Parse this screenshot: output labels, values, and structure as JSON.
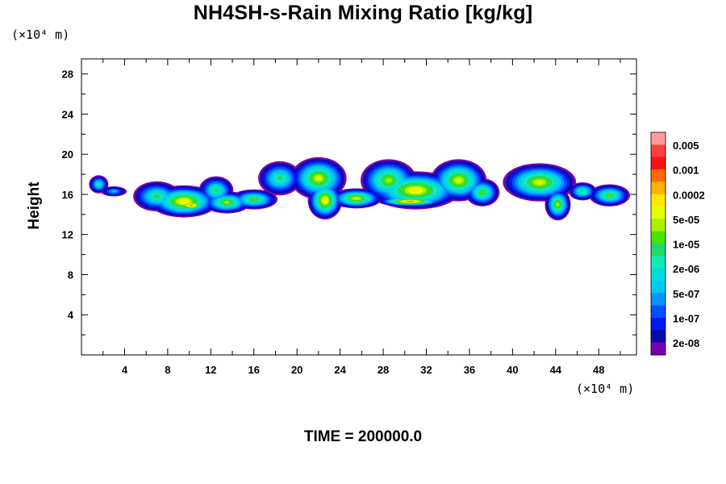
{
  "chart_data": {
    "type": "heatmap",
    "title": "NH4SH-s-Rain Mixing Ratio [kg/kg]",
    "ylabel": "Height",
    "xlabel": "",
    "x_unit": "(×10⁴ m)",
    "y_unit": "(×10⁴ m)",
    "xlim": [
      0,
      51.5
    ],
    "ylim": [
      0,
      29.5
    ],
    "x_ticks": [
      4,
      8,
      12,
      16,
      20,
      24,
      28,
      32,
      36,
      40,
      44,
      48
    ],
    "y_ticks": [
      4,
      8,
      12,
      16,
      20,
      24,
      28
    ],
    "colorbar": {
      "labels": [
        "0.005",
        "0.001",
        "0.0002",
        "5e-05",
        "1e-05",
        "2e-06",
        "5e-07",
        "1e-07",
        "2e-08"
      ],
      "colors": [
        "#ff9a9a",
        "#ff4040",
        "#ff1010",
        "#ff6a00",
        "#ffb000",
        "#ffe800",
        "#e6ff00",
        "#a8f000",
        "#44e400",
        "#22d86a",
        "#14e8b4",
        "#00dcdc",
        "#00c8f0",
        "#0094ff",
        "#0050ff",
        "#0018f0",
        "#0a0aa8",
        "#7800b0"
      ]
    },
    "cloud_band": {
      "y_range_approx": [
        13.5,
        19.6
      ],
      "features": [
        {
          "x_center": 2,
          "y_top": 18.0,
          "y_bottom": 15.8
        },
        {
          "x_center": 10,
          "y_top": 17.6,
          "y_bottom": 13.8,
          "max_level": "5e-05"
        },
        {
          "x_center": 15,
          "y_top": 17.4,
          "y_bottom": 14.0
        },
        {
          "x_center": 22,
          "y_top": 19.6,
          "y_bottom": 13.6
        },
        {
          "x_center": 32,
          "y_top": 19.6,
          "y_bottom": 14.4,
          "max_level": "0.0002"
        },
        {
          "x_center": 43,
          "y_top": 19.2,
          "y_bottom": 13.2
        },
        {
          "x_center": 49,
          "y_top": 17.2,
          "y_bottom": 14.6
        }
      ]
    }
  },
  "footer": {
    "time_label": "TIME = 200000.0"
  }
}
